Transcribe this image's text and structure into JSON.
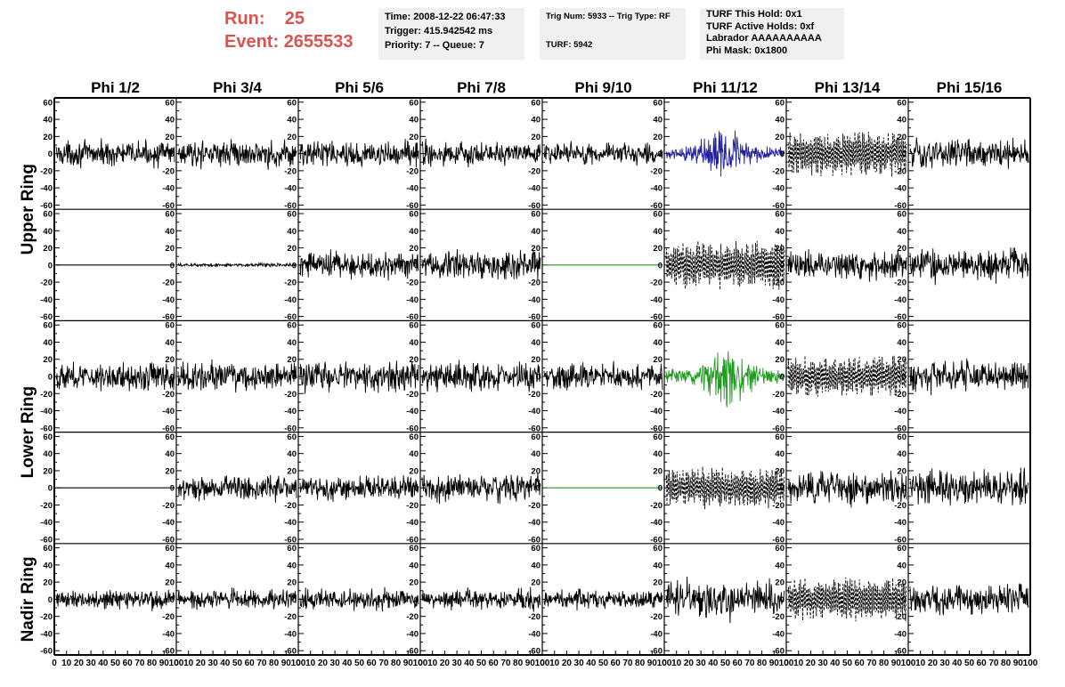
{
  "header": {
    "run_label": "Run:",
    "run_value": "25",
    "event_label": "Event:",
    "event_value": "2655533",
    "time_box": [
      "Time: 2008-12-22 06:47:33",
      "Trigger: 415.942542 ms",
      "Priority: 7 -- Queue: 7"
    ],
    "trig_box": [
      "Trig Num: 5933 -- Trig Type: RF",
      "",
      "TURF: 5942"
    ],
    "turf_box": [
      "TURF This Hold: 0x1",
      "TURF Active Holds: 0xf",
      "Labrador AAAAAAAAAA",
      "Phi Mask: 0x1800"
    ]
  },
  "chart_data": {
    "type": "line",
    "columns": [
      "Phi 1/2",
      "Phi 3/4",
      "Phi 5/6",
      "Phi 7/8",
      "Phi 9/10",
      "Phi 11/12",
      "Phi 13/14",
      "Phi 15/16"
    ],
    "ring_labels": [
      {
        "label": "Upper Ring",
        "rows": [
          0,
          1
        ]
      },
      {
        "label": "Lower Ring",
        "rows": [
          2,
          3
        ]
      },
      {
        "label": "Nadir Ring",
        "rows": [
          4,
          4
        ]
      }
    ],
    "ylim": [
      -65,
      65
    ],
    "yticks": [
      -60,
      -40,
      -20,
      0,
      20,
      40,
      60
    ],
    "xlim": [
      0,
      100
    ],
    "xticks": [
      0,
      10,
      20,
      30,
      40,
      50,
      60,
      70,
      80,
      90,
      100
    ],
    "n_samples": 260,
    "colors": {
      "default": "#000000",
      "highlight_upper": "#1f1f9e",
      "highlight_lower": "#1e9b1e"
    },
    "panels": [
      [
        {
          "style": "solid",
          "color": "#000000",
          "amp": 13
        },
        {
          "style": "solid",
          "color": "#000000",
          "amp": 14
        },
        {
          "style": "solid",
          "color": "#000000",
          "amp": 14
        },
        {
          "style": "solid",
          "color": "#000000",
          "amp": 13
        },
        {
          "style": "solid",
          "color": "#000000",
          "amp": 12
        },
        {
          "style": "solid",
          "color": "#1f1f9e",
          "amp": 24,
          "envelope": "pulse"
        },
        {
          "style": "dotted",
          "color": "#000000",
          "amp": 24
        },
        {
          "style": "solid",
          "color": "#000000",
          "amp": 16
        }
      ],
      [
        {
          "style": "flat",
          "color": "#000000",
          "amp": 0
        },
        {
          "style": "solid",
          "color": "#000000",
          "amp": 2
        },
        {
          "style": "solid",
          "color": "#000000",
          "amp": 15
        },
        {
          "style": "solid",
          "color": "#000000",
          "amp": 16
        },
        {
          "style": "flat",
          "color": "#1e9b1e",
          "amp": 0
        },
        {
          "style": "dotted",
          "color": "#000000",
          "amp": 26
        },
        {
          "style": "solid",
          "color": "#000000",
          "amp": 15
        },
        {
          "style": "solid",
          "color": "#000000",
          "amp": 17
        }
      ],
      [
        {
          "style": "solid",
          "color": "#000000",
          "amp": 15
        },
        {
          "style": "solid",
          "color": "#000000",
          "amp": 15
        },
        {
          "style": "solid",
          "color": "#000000",
          "amp": 16
        },
        {
          "style": "solid",
          "color": "#000000",
          "amp": 15
        },
        {
          "style": "solid",
          "color": "#000000",
          "amp": 14
        },
        {
          "style": "solid",
          "color": "#1e9b1e",
          "amp": 30,
          "envelope": "pulse"
        },
        {
          "style": "dotted",
          "color": "#000000",
          "amp": 22
        },
        {
          "style": "solid",
          "color": "#000000",
          "amp": 17
        }
      ],
      [
        {
          "style": "flat",
          "color": "#000000",
          "amp": 0
        },
        {
          "style": "solid",
          "color": "#000000",
          "amp": 14
        },
        {
          "style": "solid",
          "color": "#000000",
          "amp": 13
        },
        {
          "style": "solid",
          "color": "#000000",
          "amp": 15
        },
        {
          "style": "flat",
          "color": "#1e9b1e",
          "amp": 0
        },
        {
          "style": "dotted",
          "color": "#000000",
          "amp": 22
        },
        {
          "style": "solid",
          "color": "#000000",
          "amp": 17
        },
        {
          "style": "solid",
          "color": "#000000",
          "amp": 18
        }
      ],
      [
        {
          "style": "solid",
          "color": "#000000",
          "amp": 11
        },
        {
          "style": "solid",
          "color": "#000000",
          "amp": 10
        },
        {
          "style": "solid",
          "color": "#000000",
          "amp": 11
        },
        {
          "style": "solid",
          "color": "#000000",
          "amp": 11
        },
        {
          "style": "solid",
          "color": "#000000",
          "amp": 10
        },
        {
          "style": "solid",
          "color": "#000000",
          "amp": 20
        },
        {
          "style": "dotted",
          "color": "#000000",
          "amp": 24
        },
        {
          "style": "solid",
          "color": "#000000",
          "amp": 16
        }
      ]
    ]
  }
}
